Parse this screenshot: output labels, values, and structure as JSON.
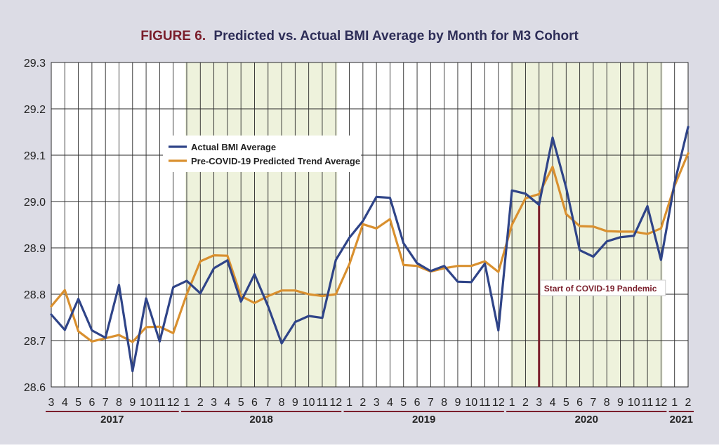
{
  "colors": {
    "panel_bg": "#dcdce5",
    "plot_bg": "#ffffff",
    "year_band": "#eef2dc",
    "grid": "#2a2a2a",
    "title_figure": "#7a1e2b",
    "title_text": "#2e2e58",
    "actual_line": "#2f4488",
    "predicted_line": "#d9902f",
    "covid_marker": "#7a1e2b",
    "year_rule": "#7a1e2b"
  },
  "title": {
    "figure": "FIGURE 6.",
    "text": "Predicted vs. Actual BMI Average by Month for M3 Cohort"
  },
  "chart_data": {
    "type": "line",
    "x": [
      "3",
      "4",
      "5",
      "6",
      "7",
      "8",
      "9",
      "10",
      "11",
      "12",
      "1",
      "2",
      "3",
      "4",
      "5",
      "6",
      "7",
      "8",
      "9",
      "10",
      "11",
      "12",
      "1",
      "2",
      "3",
      "4",
      "5",
      "6",
      "7",
      "8",
      "9",
      "10",
      "11",
      "12",
      "1",
      "2",
      "3",
      "4",
      "5",
      "6",
      "7",
      "8",
      "9",
      "10",
      "11",
      "12",
      "1",
      "2"
    ],
    "years": [
      {
        "label": "2017",
        "start": 0,
        "end": 9,
        "shaded": false
      },
      {
        "label": "2018",
        "start": 10,
        "end": 21,
        "shaded": true
      },
      {
        "label": "2019",
        "start": 22,
        "end": 33,
        "shaded": false
      },
      {
        "label": "2020",
        "start": 34,
        "end": 45,
        "shaded": true
      },
      {
        "label": "2021",
        "start": 46,
        "end": 47,
        "shaded": false
      }
    ],
    "ylim": [
      28.6,
      29.3
    ],
    "yticks": [
      28.6,
      28.7,
      28.8,
      28.9,
      29.0,
      29.1,
      29.2,
      29.3
    ],
    "ytick_labels": [
      "28.6",
      "28.7",
      "28.8",
      "28.9",
      "29.0",
      "29.1",
      "29.2",
      "29.3"
    ],
    "grid": true,
    "legend_position": "upper-left",
    "series": [
      {
        "name": "Actual BMI Average",
        "values": [
          28.756,
          28.723,
          28.79,
          28.722,
          28.706,
          28.82,
          28.634,
          28.791,
          28.698,
          28.815,
          28.829,
          28.802,
          28.856,
          28.873,
          28.784,
          28.843,
          28.774,
          28.694,
          28.74,
          28.753,
          28.749,
          28.874,
          28.922,
          28.958,
          29.01,
          29.008,
          28.91,
          28.867,
          28.85,
          28.861,
          28.827,
          28.826,
          28.866,
          28.722,
          29.024,
          29.017,
          28.993,
          29.138,
          29.03,
          28.895,
          28.881,
          28.914,
          28.923,
          28.926,
          28.99,
          28.874,
          29.04,
          29.161
        ]
      },
      {
        "name": "Pre-COVID-19 Predicted Trend Average",
        "values": [
          28.774,
          28.809,
          28.72,
          28.698,
          28.705,
          28.712,
          28.697,
          28.729,
          28.73,
          28.716,
          28.8,
          28.871,
          28.884,
          28.883,
          28.796,
          28.781,
          28.796,
          28.808,
          28.808,
          28.8,
          28.796,
          28.8,
          28.865,
          28.951,
          28.942,
          28.962,
          28.863,
          28.861,
          28.849,
          28.856,
          28.861,
          28.861,
          28.871,
          28.848,
          28.95,
          29.007,
          29.016,
          29.075,
          28.973,
          28.947,
          28.946,
          28.936,
          28.935,
          28.935,
          28.93,
          28.942,
          29.034,
          29.104
        ]
      }
    ],
    "annotation": {
      "text": "Start of COVID-19 Pandemic",
      "index": 36
    }
  }
}
